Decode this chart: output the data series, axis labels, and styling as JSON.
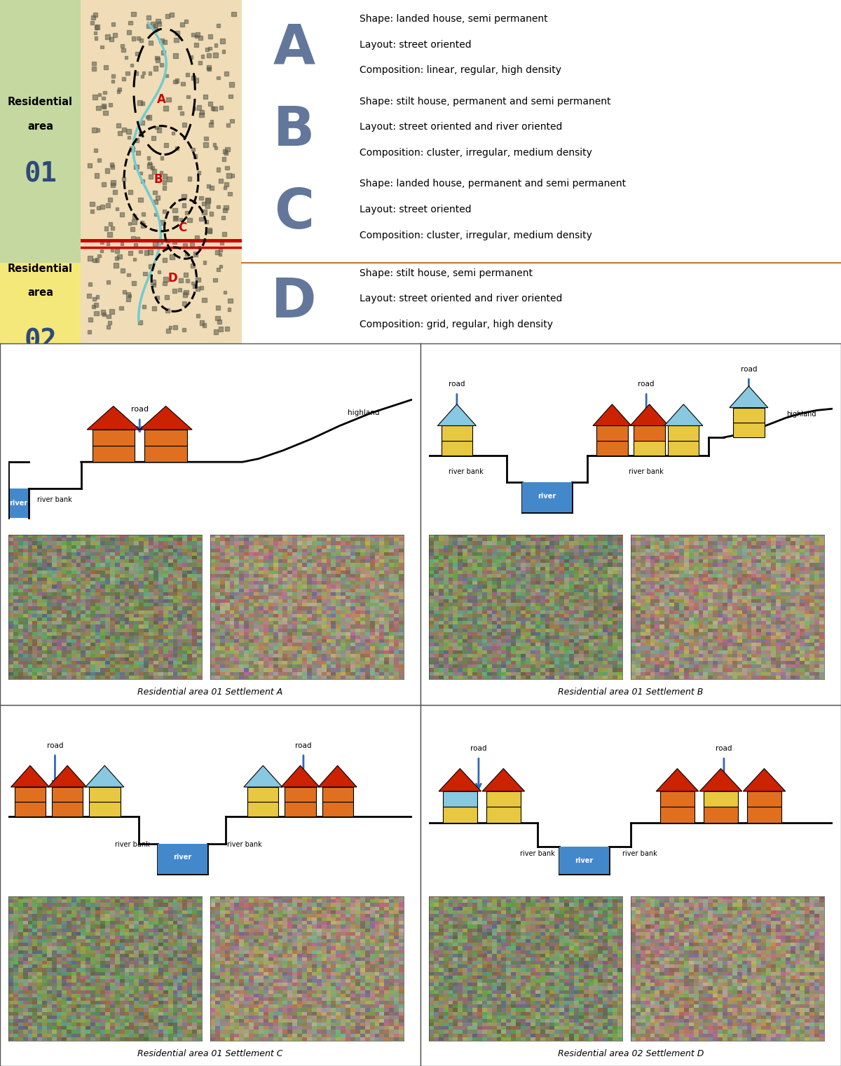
{
  "bg_green": "#c5d8a0",
  "bg_yellow": "#f5e87a",
  "bg_white": "#ffffff",
  "bg_map": "#f0ddb8",
  "divider_color": "#c07830",
  "letter_hatch_color": "#2e4a7a",
  "road_color_map": "#cc0000",
  "river_color_map": "#70ccd0",
  "water_color": "#4488cc",
  "ground_color": "#d8c890",
  "house_red": "#cc2200",
  "house_orange": "#e07020",
  "house_yellow_wall": "#e8c840",
  "house_cyan_roof": "#88c8e0",
  "house_blue_wall": "#4488cc",
  "arrow_color": "#3366bb",
  "photo_gray": "#888888",
  "settlements": {
    "A": {
      "shape": "Shape: landed house, semi permanent",
      "layout": "Layout: street oriented",
      "composition": "Composition: linear, regular, high density",
      "caption": "Residential area 01 Settlement A"
    },
    "B": {
      "shape": "Shape: stilt house, permanent and semi permanent",
      "layout": "Layout: street oriented and river oriented",
      "composition": "Composition: cluster, irregular, medium density",
      "caption": "Residential area 01 Settlement B"
    },
    "C": {
      "shape": "Shape: landed house, permanent and semi permanent",
      "layout": "Layout: street oriented",
      "composition": "Composition: cluster, irregular, medium density",
      "caption": "Residential area 01 Settlement C"
    },
    "D": {
      "shape": "Shape: stilt house, semi permanent",
      "layout": "Layout: street oriented and river oriented",
      "composition": "Composition: grid, regular, high density",
      "caption": "Residential area 02 Settlement D"
    }
  }
}
